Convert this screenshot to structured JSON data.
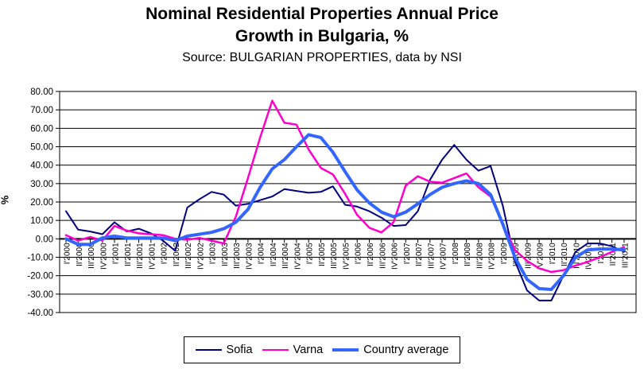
{
  "title": {
    "line1": "Nominal Residential Properties Annual Price",
    "line2": "Growth in Bulgaria, %",
    "subtitle": "Source: BULGARIAN PROPERTIES, data by NSI"
  },
  "y_axis": {
    "unit_label": "%",
    "min": -40,
    "max": 80,
    "step": 10,
    "tick_label_decimals": 2
  },
  "chart_data": {
    "type": "line",
    "title": "Nominal Residential Properties Annual Price Growth in Bulgaria, %",
    "xlabel": "",
    "ylabel": "%",
    "ylim": [
      -40,
      80
    ],
    "grid": "horizontal",
    "legend_position": "bottom",
    "categories": [
      "I'2000",
      "II'2000",
      "III'2000",
      "IV'2000",
      "I'2001",
      "II'2001",
      "III'2001",
      "IV'2001",
      "I'2002",
      "II'2002",
      "III'2002",
      "IV'2002",
      "I'2003",
      "II'2003",
      "III'2003",
      "IV'2003",
      "I'2004",
      "II'2004",
      "III'2004",
      "IV'2004",
      "I'2005",
      "II'2005",
      "III'2005",
      "IV'2005",
      "I'2006",
      "II'2006",
      "III'2006",
      "IV'2006",
      "I'2007",
      "II'2007",
      "III'2007",
      "IV'2007",
      "I'2008",
      "II'2008",
      "III'2008",
      "IV'2008",
      "I'2009",
      "II'2009",
      "III'2009",
      "IV'2009",
      "I'2010",
      "II'2010",
      "III'2010",
      "IV'2010",
      "I'2011",
      "II'2011",
      "III'2011"
    ],
    "series": [
      {
        "name": "Sofia",
        "color": "#000080",
        "stroke_width": 2,
        "values": [
          15,
          5,
          4,
          2.5,
          9,
          4,
          5.5,
          3,
          -1,
          -6.5,
          17,
          21.5,
          25.5,
          24,
          18,
          19,
          21,
          23,
          27,
          26,
          25,
          25.5,
          28.5,
          18.5,
          17.5,
          15,
          11.5,
          7,
          7.5,
          15,
          32,
          43,
          51,
          43,
          37,
          39.5,
          18,
          -12,
          -28,
          -33.5,
          -33.5,
          -20,
          -7,
          -2.5,
          -2.5,
          -4,
          -7
        ]
      },
      {
        "name": "Varna",
        "color": "#FF00CC",
        "stroke_width": 2.5,
        "values": [
          2,
          -1,
          1,
          -1,
          7,
          4.5,
          3,
          2.5,
          2,
          0,
          -0.5,
          0.5,
          -1,
          -2.5,
          12,
          33,
          55,
          75,
          63,
          62,
          48.5,
          38.5,
          35,
          24.5,
          13,
          6,
          3.5,
          9,
          29,
          34,
          31,
          30.5,
          33,
          35.5,
          28,
          23,
          8,
          -6,
          -12,
          -16,
          -18,
          -17,
          -14.5,
          -12.5,
          -10,
          -7,
          -4.5
        ]
      },
      {
        "name": "Country average",
        "color": "#3366FF",
        "stroke_width": 4,
        "values": [
          0,
          -3,
          -3,
          0.5,
          1.5,
          0.5,
          0.5,
          0.5,
          0.5,
          -1,
          1.5,
          2.5,
          3.5,
          5.5,
          9,
          16,
          28,
          38,
          43,
          50,
          56.5,
          55,
          47,
          36.5,
          26.5,
          19.5,
          14.5,
          12,
          14.5,
          19,
          24,
          28,
          30,
          31.5,
          30,
          24,
          8,
          -10,
          -22,
          -27,
          -27.5,
          -20,
          -10,
          -6,
          -5.5,
          -5.5,
          -6
        ]
      }
    ]
  }
}
